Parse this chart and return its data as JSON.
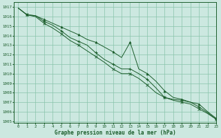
{
  "title": "Graphe pression niveau de la mer (hPa)",
  "bg_color": "#cce8e0",
  "grid_color": "#88c4aa",
  "line_color": "#1a5c2a",
  "xlim": [
    -0.5,
    23
  ],
  "ylim": [
    1004.8,
    1017.5
  ],
  "xticks": [
    0,
    1,
    2,
    3,
    4,
    5,
    6,
    7,
    8,
    9,
    10,
    11,
    12,
    13,
    14,
    15,
    16,
    17,
    18,
    19,
    20,
    21,
    22,
    23
  ],
  "yticks": [
    1005,
    1006,
    1007,
    1008,
    1009,
    1010,
    1011,
    1012,
    1013,
    1014,
    1015,
    1016,
    1017
  ],
  "line1": [
    1016.9,
    1016.2,
    1016.1,
    1015.7,
    1015.3,
    1014.9,
    1014.5,
    1014.1,
    1013.6,
    1013.3,
    1012.8,
    1012.3,
    1011.7,
    1013.3,
    1010.5,
    1010.0,
    1009.2,
    1008.2,
    1007.5,
    1007.3,
    1007.0,
    1006.8,
    1006.0,
    1005.3
  ],
  "line2": [
    1016.9,
    1016.2,
    1016.1,
    1015.5,
    1015.1,
    1014.5,
    1013.8,
    1013.4,
    1013.0,
    1012.2,
    1011.5,
    1011.0,
    1010.5,
    1010.5,
    1010.0,
    1009.4,
    1008.5,
    1007.5,
    1007.3,
    1007.2,
    1007.0,
    1006.5,
    1005.9,
    1005.2
  ],
  "line3": [
    1016.9,
    1016.2,
    1016.0,
    1015.3,
    1014.8,
    1014.2,
    1013.5,
    1013.0,
    1012.4,
    1011.8,
    1011.2,
    1010.5,
    1010.0,
    1010.0,
    1009.5,
    1008.8,
    1008.0,
    1007.5,
    1007.2,
    1007.0,
    1006.8,
    1006.3,
    1005.8,
    1005.2
  ],
  "marker_every": 2,
  "marker_start": 1
}
